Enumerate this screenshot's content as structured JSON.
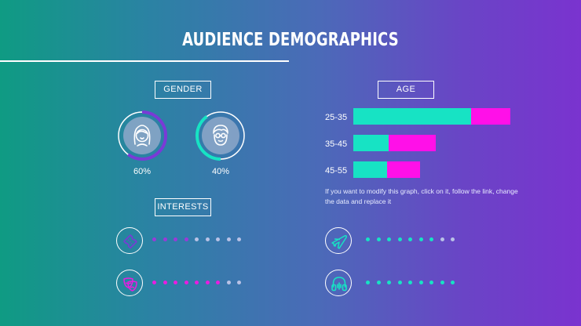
{
  "title": "AUDIENCE DEMOGRAPHICS",
  "gender": {
    "label": "GENDER",
    "items": [
      {
        "icon": "female-face-icon",
        "percent_label": "60%",
        "value": 60,
        "arc_color": "#7a3ad6"
      },
      {
        "icon": "male-face-icon",
        "percent_label": "40%",
        "value": 40,
        "arc_color": "#17e3c4"
      }
    ]
  },
  "age": {
    "label": "AGE",
    "note": "If you want to modify this graph, click on it, follow the link, change the data and replace it"
  },
  "interests": {
    "label": "INTERESTS",
    "items": [
      {
        "icon": "ticket-icon",
        "filled": 4,
        "total": 9,
        "color": "#9a3ad8"
      },
      {
        "icon": "drama-masks-icon",
        "filled": 7,
        "total": 9,
        "color": "#e81de0"
      },
      {
        "icon": "airplane-icon",
        "filled": 7,
        "total": 9,
        "color": "#17e3c4"
      },
      {
        "icon": "headphones-icon",
        "filled": 9,
        "total": 9,
        "color": "#17e3c4"
      }
    ]
  },
  "colors": {
    "teal": "#17e3c4",
    "magenta": "#ff10e8",
    "purple": "#7a3ad6",
    "inactive_dot": "#b9c2e6"
  },
  "chart_data": {
    "type": "bar",
    "orientation": "horizontal",
    "stacked": true,
    "categories": [
      "25-35",
      "35-45",
      "45-55"
    ],
    "series": [
      {
        "color": "#17e3c4",
        "values": [
          150,
          45,
          43
        ]
      },
      {
        "color": "#ff10e8",
        "values": [
          50,
          60,
          42
        ]
      }
    ]
  }
}
